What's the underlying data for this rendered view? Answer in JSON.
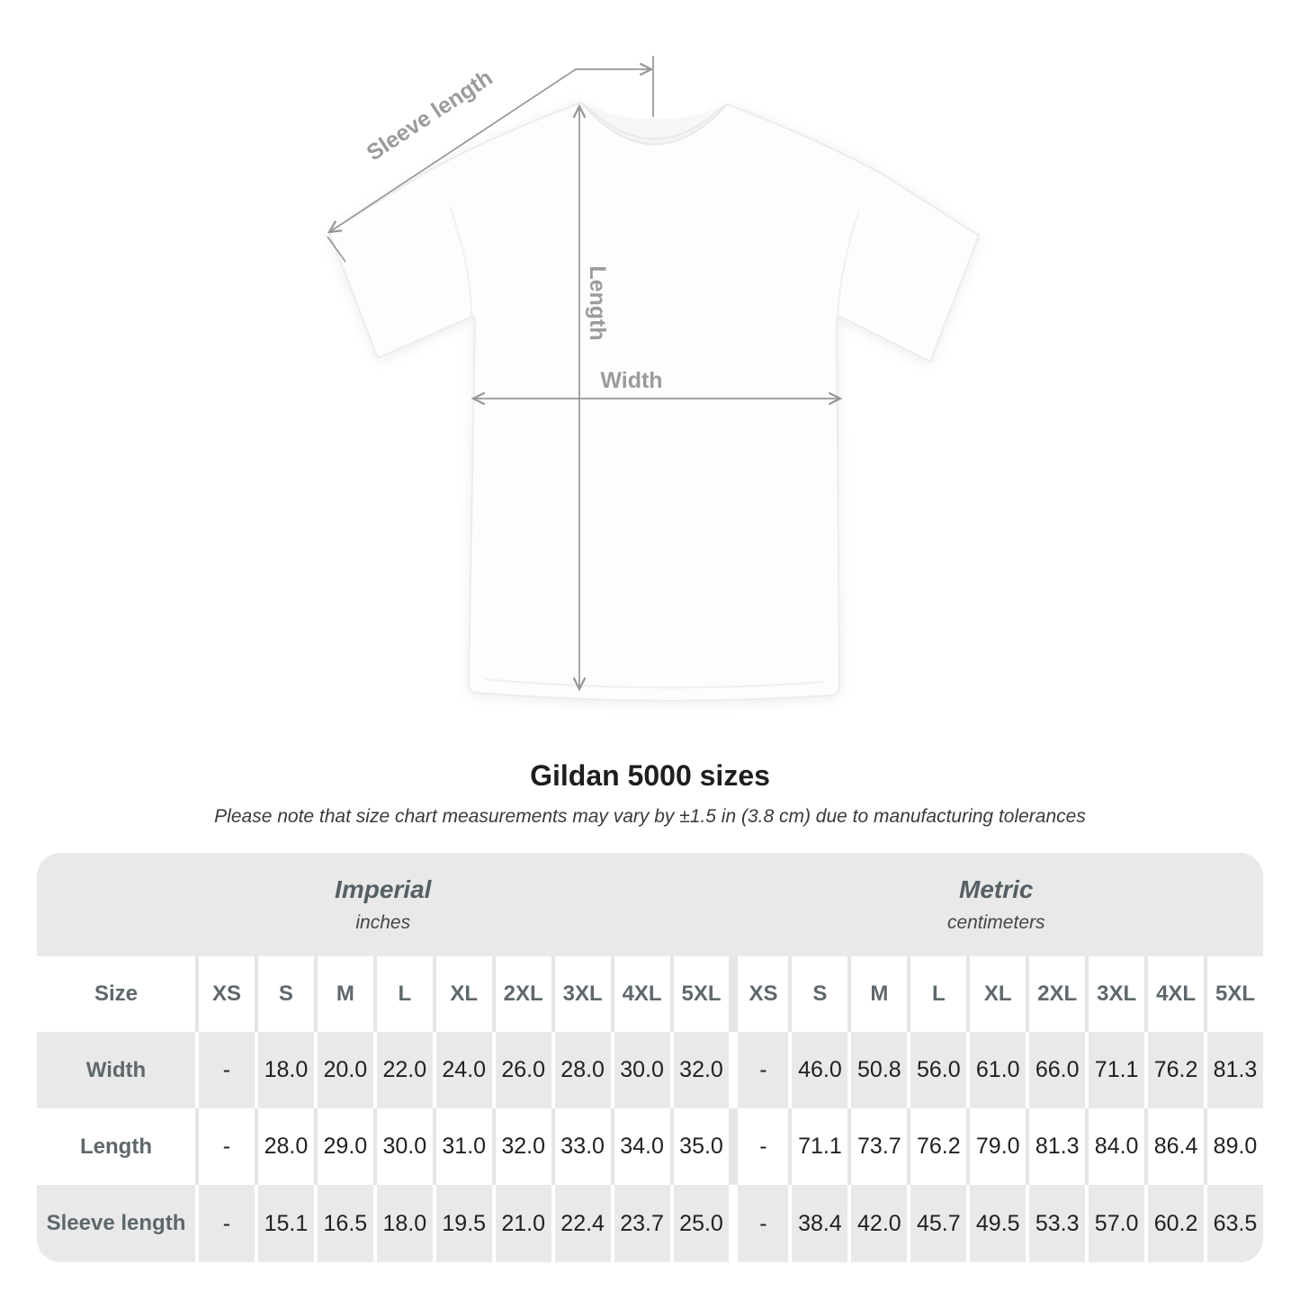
{
  "title": "Gildan 5000 sizes",
  "subtitle": "Please note that size chart measurements may vary by ±1.5 in (3.8 cm) due to manufacturing tolerances",
  "diagram": {
    "sleeve_label": "Sleeve length",
    "length_label": "Length",
    "width_label": "Width"
  },
  "table": {
    "size_label": "Size",
    "sections": [
      {
        "name": "Imperial",
        "unit": "inches"
      },
      {
        "name": "Metric",
        "unit": "centimeters"
      }
    ],
    "sizes": [
      "XS",
      "S",
      "M",
      "L",
      "XL",
      "2XL",
      "3XL",
      "4XL",
      "5XL"
    ],
    "rows": [
      {
        "label": "Width",
        "imperial": [
          "-",
          "18.0",
          "20.0",
          "22.0",
          "24.0",
          "26.0",
          "28.0",
          "30.0",
          "32.0"
        ],
        "metric": [
          "-",
          "46.0",
          "50.8",
          "56.0",
          "61.0",
          "66.0",
          "71.1",
          "76.2",
          "81.3"
        ]
      },
      {
        "label": "Length",
        "imperial": [
          "-",
          "28.0",
          "29.0",
          "30.0",
          "31.0",
          "32.0",
          "33.0",
          "34.0",
          "35.0"
        ],
        "metric": [
          "-",
          "71.1",
          "73.7",
          "76.2",
          "79.0",
          "81.3",
          "84.0",
          "86.4",
          "89.0"
        ]
      },
      {
        "label": "Sleeve length",
        "imperial": [
          "-",
          "15.1",
          "16.5",
          "18.0",
          "19.5",
          "21.0",
          "22.4",
          "23.7",
          "25.0"
        ],
        "metric": [
          "-",
          "38.4",
          "42.0",
          "45.7",
          "49.5",
          "53.3",
          "57.0",
          "60.2",
          "63.5"
        ]
      }
    ]
  },
  "colors": {
    "band_gray": "#e9e9e9",
    "divider_on_white": "#e6e6e6",
    "divider_on_gray": "#ffffff",
    "annotation_text": "#9b9b9b",
    "arrow_gray": "#97979b",
    "section_title_text": "#566064",
    "row_label_text": "#5e686c",
    "number_text": "#202124",
    "title_text": "#1e1e1e"
  }
}
